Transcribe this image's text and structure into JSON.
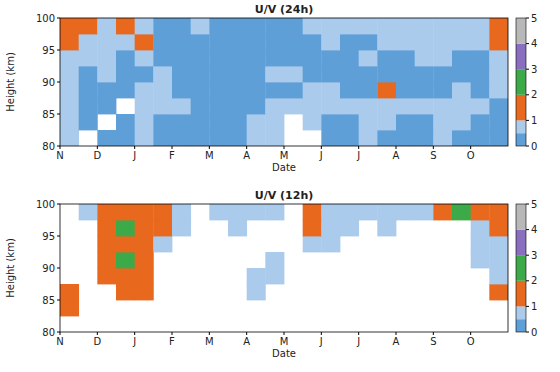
{
  "chart_data": [
    {
      "type": "heatmap",
      "title": "U/V (24h)",
      "x_label": "Date",
      "y_label": "Height (km)",
      "xlim": [
        0,
        12
      ],
      "ylim": [
        80,
        100
      ],
      "xticks": [
        {
          "value": 0,
          "label": "N"
        },
        {
          "value": 1,
          "label": "D"
        },
        {
          "value": 2,
          "label": "J"
        },
        {
          "value": 3,
          "label": "F"
        },
        {
          "value": 4,
          "label": "M"
        },
        {
          "value": 5,
          "label": "A"
        },
        {
          "value": 6,
          "label": "M"
        },
        {
          "value": 7,
          "label": "J"
        },
        {
          "value": 8,
          "label": "J"
        },
        {
          "value": 9,
          "label": "A"
        },
        {
          "value": 10,
          "label": "S"
        },
        {
          "value": 11,
          "label": "O"
        }
      ],
      "yticks": [
        80,
        85,
        90,
        95,
        100
      ],
      "x_edges": [
        0,
        0.5,
        1,
        1.5,
        2,
        2.5,
        3,
        3.5,
        4,
        4.5,
        5,
        5.5,
        6,
        6.5,
        7,
        7.5,
        8,
        8.5,
        9,
        9.5,
        10,
        10.5,
        11,
        11.5,
        12
      ],
      "y_edges": [
        80,
        82.5,
        85,
        87.5,
        90,
        92.5,
        95,
        97.5,
        100
      ],
      "cells": [
        [
          0.6,
          null,
          0.3,
          0.3,
          0.6,
          0.3,
          0.3,
          0.3,
          0.3,
          0.3,
          0.6,
          0.6,
          null,
          null,
          0.3,
          0.3,
          0.6,
          0.3,
          0.3,
          0.3,
          0.6,
          0.3,
          0.3,
          0.3
        ],
        [
          0.6,
          0.3,
          null,
          0.3,
          0.6,
          0.3,
          0.3,
          0.3,
          0.3,
          0.3,
          0.6,
          0.6,
          null,
          0.6,
          0.3,
          0.3,
          0.6,
          0.6,
          0.3,
          0.3,
          0.6,
          0.6,
          0.3,
          0.3
        ],
        [
          0.7,
          0.3,
          0.3,
          null,
          0.6,
          0.6,
          0.6,
          0.3,
          0.3,
          0.3,
          0.3,
          0.6,
          0.6,
          0.7,
          0.6,
          0.6,
          0.6,
          0.6,
          0.7,
          0.6,
          0.6,
          0.6,
          0.6,
          0.3
        ],
        [
          0.6,
          0.3,
          0.3,
          0.3,
          0.6,
          0.6,
          0.3,
          0.3,
          0.3,
          0.3,
          0.3,
          0.3,
          0.3,
          0.6,
          0.6,
          0.3,
          0.3,
          1.3,
          0.3,
          0.3,
          0.3,
          0.6,
          0.3,
          0.6
        ],
        [
          0.6,
          0.3,
          0.6,
          0.3,
          0.3,
          0.6,
          0.3,
          0.3,
          0.3,
          0.3,
          0.3,
          0.6,
          0.6,
          0.3,
          0.3,
          0.3,
          0.3,
          0.3,
          0.3,
          0.3,
          0.3,
          0.3,
          0.3,
          0.6
        ],
        [
          0.7,
          0.6,
          0.7,
          0.3,
          0.6,
          0.3,
          0.3,
          0.3,
          0.3,
          0.3,
          0.3,
          0.3,
          0.3,
          0.3,
          0.3,
          0.3,
          0.6,
          0.3,
          0.3,
          0.6,
          0.7,
          0.3,
          0.3,
          0.7
        ],
        [
          1.2,
          0.7,
          0.7,
          0.6,
          1.2,
          0.3,
          0.3,
          0.3,
          0.3,
          0.3,
          0.3,
          0.3,
          0.3,
          0.3,
          0.7,
          0.3,
          0.3,
          0.6,
          0.7,
          0.7,
          0.7,
          0.6,
          0.6,
          1.2
        ],
        [
          1.4,
          1.3,
          0.7,
          1.2,
          0.7,
          0.3,
          0.3,
          0.6,
          0.3,
          0.3,
          0.3,
          0.3,
          0.3,
          0.6,
          0.7,
          0.6,
          0.7,
          0.6,
          0.6,
          0.7,
          0.7,
          0.6,
          0.7,
          1.3
        ]
      ],
      "colorbar_range": [
        0,
        5
      ],
      "colorbar_ticks": [
        0,
        1,
        2,
        3,
        4,
        5
      ]
    },
    {
      "type": "heatmap",
      "title": "U/V (12h)",
      "x_label": "Date",
      "y_label": "Height (km)",
      "xlim": [
        0,
        12
      ],
      "ylim": [
        80,
        100
      ],
      "xticks": [
        {
          "value": 0,
          "label": "N"
        },
        {
          "value": 1,
          "label": "D"
        },
        {
          "value": 2,
          "label": "J"
        },
        {
          "value": 3,
          "label": "F"
        },
        {
          "value": 4,
          "label": "M"
        },
        {
          "value": 5,
          "label": "A"
        },
        {
          "value": 6,
          "label": "M"
        },
        {
          "value": 7,
          "label": "J"
        },
        {
          "value": 8,
          "label": "J"
        },
        {
          "value": 9,
          "label": "A"
        },
        {
          "value": 10,
          "label": "S"
        },
        {
          "value": 11,
          "label": "O"
        }
      ],
      "yticks": [
        80,
        85,
        90,
        95,
        100
      ],
      "x_edges": [
        0,
        0.5,
        1,
        1.5,
        2,
        2.5,
        3,
        3.5,
        4,
        4.5,
        5,
        5.5,
        6,
        6.5,
        7,
        7.5,
        8,
        8.5,
        9,
        9.5,
        10,
        10.5,
        11,
        11.5,
        12
      ],
      "y_edges": [
        80,
        82.5,
        85,
        87.5,
        90,
        92.5,
        95,
        97.5,
        100
      ],
      "cells": [
        [
          null,
          null,
          null,
          null,
          null,
          null,
          null,
          null,
          null,
          null,
          null,
          null,
          null,
          null,
          null,
          null,
          null,
          null,
          null,
          null,
          null,
          null,
          null,
          null
        ],
        [
          1.3,
          null,
          null,
          null,
          null,
          null,
          null,
          null,
          null,
          null,
          null,
          null,
          null,
          null,
          null,
          null,
          null,
          null,
          null,
          null,
          null,
          null,
          null,
          null
        ],
        [
          1.3,
          null,
          null,
          1.3,
          1.4,
          null,
          null,
          null,
          null,
          null,
          0.6,
          null,
          null,
          null,
          null,
          null,
          null,
          null,
          null,
          null,
          null,
          null,
          null,
          1.3
        ],
        [
          null,
          null,
          1.3,
          1.4,
          1.2,
          null,
          null,
          null,
          null,
          null,
          0.6,
          0.6,
          null,
          null,
          null,
          null,
          null,
          null,
          null,
          null,
          null,
          null,
          null,
          0.6
        ],
        [
          null,
          null,
          1.3,
          2.1,
          1.3,
          null,
          null,
          null,
          null,
          null,
          null,
          0.6,
          null,
          null,
          null,
          null,
          null,
          null,
          null,
          null,
          null,
          null,
          0.6,
          0.6
        ],
        [
          null,
          null,
          1.3,
          1.4,
          1.4,
          0.7,
          null,
          null,
          null,
          null,
          null,
          null,
          null,
          0.7,
          0.6,
          null,
          null,
          null,
          null,
          null,
          null,
          null,
          0.6,
          0.7
        ],
        [
          null,
          null,
          1.4,
          2.3,
          1.4,
          1.2,
          0.6,
          null,
          null,
          0.7,
          null,
          null,
          null,
          1.2,
          0.7,
          0.6,
          null,
          0.7,
          null,
          null,
          null,
          null,
          0.7,
          1.2
        ],
        [
          null,
          0.7,
          1.5,
          1.4,
          1.5,
          1.3,
          0.6,
          null,
          0.6,
          0.6,
          0.6,
          0.6,
          null,
          1.3,
          0.7,
          0.6,
          0.6,
          0.6,
          0.6,
          0.6,
          1.3,
          2.2,
          1.4,
          1.6
        ]
      ],
      "colorbar_range": [
        0,
        5
      ],
      "colorbar_ticks": [
        0,
        1,
        2,
        3,
        4,
        5
      ]
    }
  ]
}
